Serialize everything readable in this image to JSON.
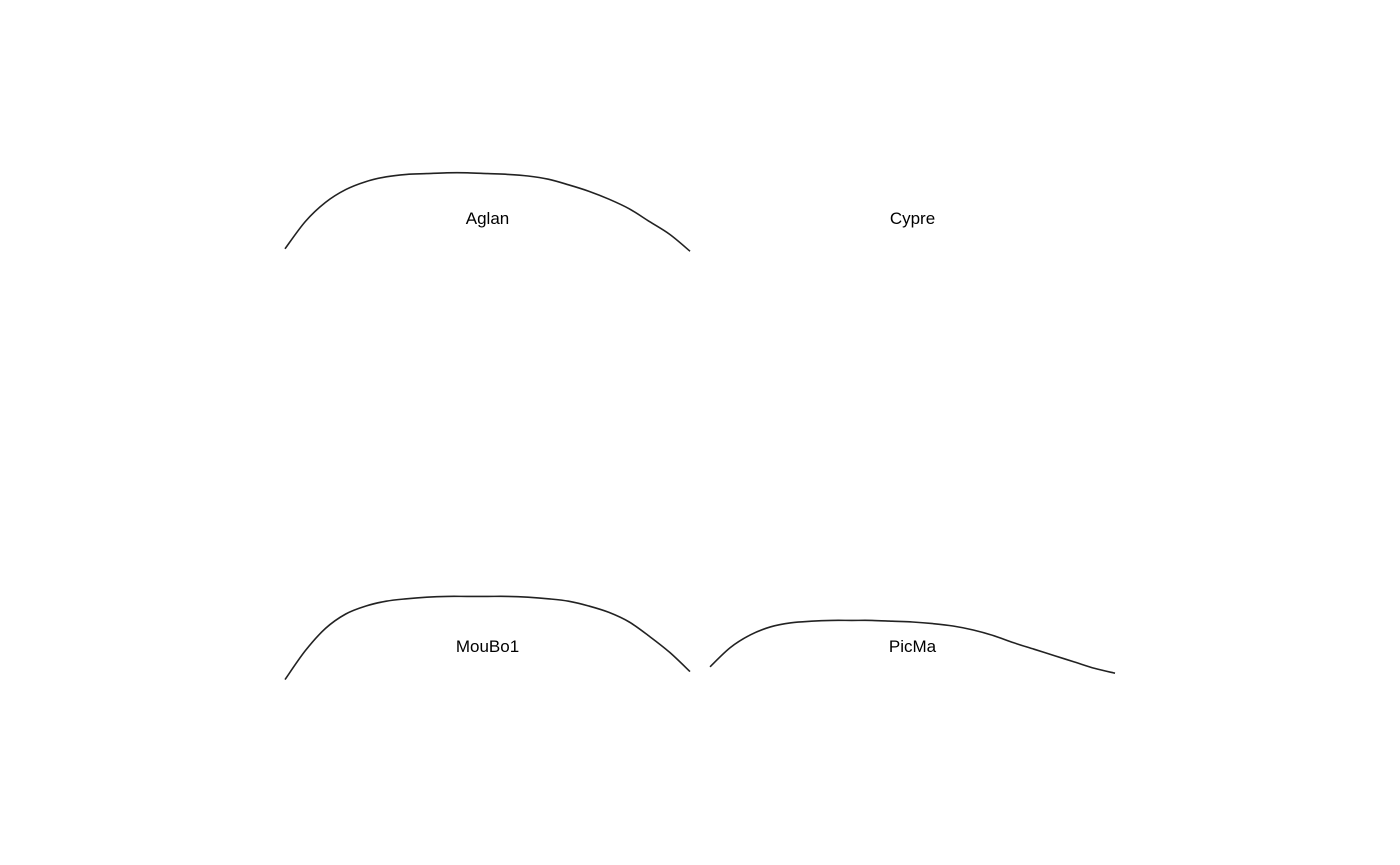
{
  "chart_data": {
    "type": "line",
    "layout": "2x2 small multiples",
    "axes_visible": false,
    "grid": false,
    "line_color": "#222222",
    "xlim": [
      0,
      1
    ],
    "ylim": [
      0,
      1
    ],
    "panels": [
      {
        "title": "Aglan",
        "x": [
          0,
          0.05,
          0.1,
          0.15,
          0.2,
          0.25,
          0.3,
          0.35,
          0.4,
          0.45,
          0.5,
          0.55,
          0.6,
          0.65,
          0.7,
          0.75,
          0.8,
          0.85,
          0.9,
          0.95,
          1
        ],
        "y": [
          0.32,
          0.49,
          0.61,
          0.69,
          0.74,
          0.77,
          0.785,
          0.79,
          0.795,
          0.795,
          0.79,
          0.785,
          0.775,
          0.755,
          0.72,
          0.68,
          0.63,
          0.57,
          0.49,
          0.41,
          0.305
        ]
      },
      {
        "title": "Cypre",
        "x": [],
        "y": []
      },
      {
        "title": "MouBo1",
        "x": [
          0,
          0.05,
          0.1,
          0.15,
          0.2,
          0.25,
          0.3,
          0.35,
          0.4,
          0.45,
          0.5,
          0.55,
          0.6,
          0.65,
          0.7,
          0.75,
          0.8,
          0.85,
          0.9,
          0.95,
          1
        ],
        "y": [
          0.29,
          0.47,
          0.61,
          0.7,
          0.75,
          0.78,
          0.795,
          0.805,
          0.81,
          0.81,
          0.81,
          0.81,
          0.805,
          0.795,
          0.78,
          0.75,
          0.71,
          0.65,
          0.56,
          0.46,
          0.34
        ]
      },
      {
        "title": "PicMa",
        "x": [
          0,
          0.05,
          0.1,
          0.15,
          0.2,
          0.25,
          0.3,
          0.35,
          0.4,
          0.45,
          0.5,
          0.55,
          0.6,
          0.65,
          0.7,
          0.75,
          0.8,
          0.85,
          0.9,
          0.95,
          1
        ],
        "y": [
          0.37,
          0.49,
          0.57,
          0.62,
          0.645,
          0.655,
          0.66,
          0.66,
          0.66,
          0.655,
          0.65,
          0.64,
          0.625,
          0.6,
          0.565,
          0.52,
          0.48,
          0.44,
          0.4,
          0.36,
          0.33
        ]
      }
    ]
  }
}
